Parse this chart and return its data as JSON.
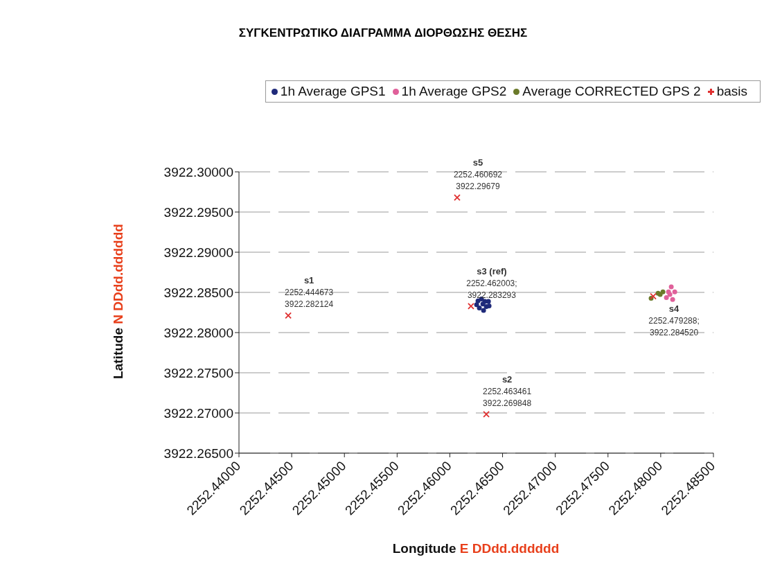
{
  "chart_data": {
    "type": "scatter",
    "title": "ΣΥΓΚΕΝΤΡΩΤΙΚΟ ΔΙΑΓΡΑΜΜΑ ΔΙΟΡΘΩΣΗΣ ΘΕΣΗΣ",
    "xlabel": "Longitude E DDdd.dddddd",
    "ylabel": "Latitude N DDdd.dddddd",
    "series": [
      {
        "name": "1h Average GPS1",
        "color": "#1f2a7a",
        "marker": "circle",
        "x": [
          2252.46267,
          2252.463,
          2252.46333,
          2252.46366,
          2252.46254,
          2252.46313,
          2252.46346,
          2252.4628,
          2252.4632,
          2252.46372
        ],
        "values": [
          3922.28395,
          3922.28419,
          3922.28387,
          3922.28387,
          3922.28347,
          3922.28355,
          3922.28323,
          3922.28307,
          3922.28275,
          3922.28331
        ]
      },
      {
        "name": "1h Average GPS2",
        "color": "#e0609a",
        "marker": "circle",
        "x": [
          2252.481,
          2252.48133,
          2252.48113,
          2252.48074,
          2252.48054,
          2252.48087
        ],
        "values": [
          3922.2857,
          3922.28506,
          3922.28411,
          3922.28506,
          3922.28435,
          3922.28474
        ]
      },
      {
        "name": "Average CORRECTED GPS 2",
        "color": "#6b7a2a",
        "marker": "circle",
        "x": [
          2252.47909,
          2252.47975,
          2252.47995,
          2252.48021
        ],
        "values": [
          3922.28427,
          3922.2849,
          3922.28474,
          3922.28506
        ]
      },
      {
        "name": "basis",
        "color": "#e03030",
        "marker": "cross",
        "x": [
          2252.444673,
          2252.46346,
          2252.462003,
          2252.479288,
          2252.460692
        ],
        "values": [
          3922.282124,
          3922.269848,
          3922.283293,
          3922.28452,
          3922.29679
        ]
      }
    ],
    "xlim": [
      2252.44,
      2252.485
    ],
    "xticks": [
      {
        "value": 2252.44,
        "label": "2252.44000"
      },
      {
        "value": 2252.445,
        "label": "2252.44500"
      },
      {
        "value": 2252.45,
        "label": "2252.45000"
      },
      {
        "value": 2252.455,
        "label": "2252.45500"
      },
      {
        "value": 2252.46,
        "label": "2252.46000"
      },
      {
        "value": 2252.465,
        "label": "2252.46500"
      },
      {
        "value": 2252.47,
        "label": "2252.47000"
      },
      {
        "value": 2252.475,
        "label": "2252.47500"
      },
      {
        "value": 2252.48,
        "label": "2252.48000"
      },
      {
        "value": 2252.485,
        "label": "2252.48500"
      }
    ],
    "ylim": [
      3922.265,
      3922.3
    ],
    "yticks": [
      {
        "value": 3922.265,
        "label": "3922.26500"
      },
      {
        "value": 3922.27,
        "label": "3922.27000"
      },
      {
        "value": 3922.275,
        "label": "3922.27500"
      },
      {
        "value": 3922.28,
        "label": "3922.28000"
      },
      {
        "value": 3922.285,
        "label": "3922.28500"
      },
      {
        "value": 3922.29,
        "label": "3922.29000"
      },
      {
        "value": 3922.295,
        "label": "3922.29500"
      },
      {
        "value": 3922.3,
        "label": "3922.30000"
      }
    ],
    "grid": "y",
    "legend": "top",
    "annotations": [
      {
        "text": "s1\n2252.444673\n3922.282124",
        "x": 2252.444673,
        "y": 3922.282124
      },
      {
        "text": "s2\n2252.463461\n3922.269848",
        "x": 2252.46346,
        "y": 3922.269848
      },
      {
        "text": "s3 (ref)\n2252.462003;\n3922.283293",
        "x": 2252.462003,
        "y": 3922.283293
      },
      {
        "text": "s4\n2252.479288;\n3922.284520",
        "x": 2252.479288,
        "y": 3922.28452
      },
      {
        "text": "s5\n2252.460692\n3922.29679",
        "x": 2252.460692,
        "y": 3922.29679
      }
    ]
  }
}
